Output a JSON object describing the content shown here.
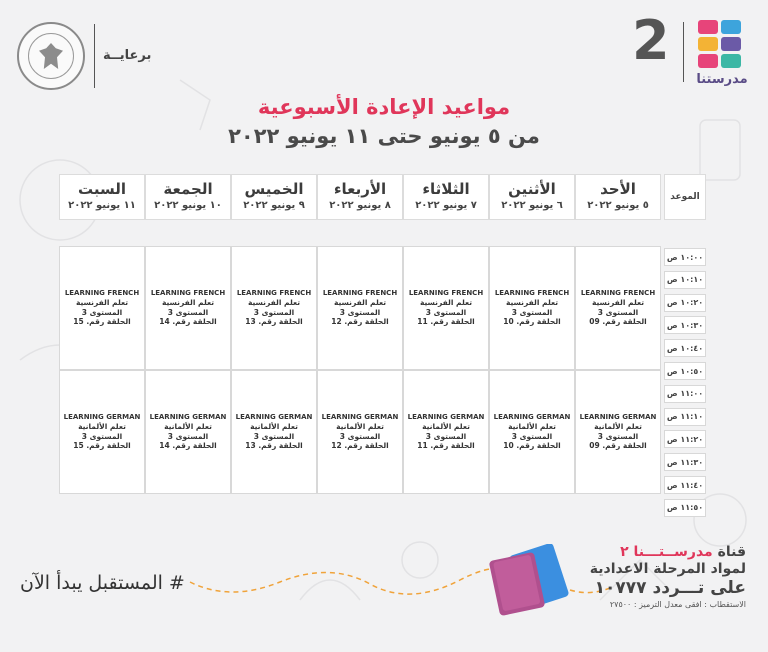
{
  "header": {
    "sponsor": "برعايــة",
    "channel_number": "2",
    "brand_name": "مدرستنا",
    "brand_colors": [
      "#e7447a",
      "#3da4dc",
      "#f3b335",
      "#6b5aa7",
      "#e7447a",
      "#3cb7a5"
    ]
  },
  "title": "مواعيد الإعادة الأسبوعية",
  "subtitle": "من ٥ يونيو حتى ١١ يونيو ٢٠٢٢",
  "time_header": "الموعد",
  "days": [
    {
      "name": "الأحد",
      "date": "٥ يونيو ٢٠٢٢"
    },
    {
      "name": "الأثنين",
      "date": "٦ يونيو ٢٠٢٢"
    },
    {
      "name": "الثلاثاء",
      "date": "٧ يونيو ٢٠٢٢"
    },
    {
      "name": "الأربعاء",
      "date": "٨ يونيو ٢٠٢٢"
    },
    {
      "name": "الخميس",
      "date": "٩ يونيو ٢٠٢٢"
    },
    {
      "name": "الجمعة",
      "date": "١٠ يونيو ٢٠٢٢"
    },
    {
      "name": "السبت",
      "date": "١١ يونيو ٢٠٢٢"
    }
  ],
  "time_slots": [
    "١٠:٠٠ ص",
    "١٠:١٠ ص",
    "١٠:٢٠ ص",
    "١٠:٣٠ ص",
    "١٠:٤٠ ص",
    "١٠:٥٠ ص",
    "١١:٠٠ ص",
    "١١:١٠ ص",
    "١١:٢٠ ص",
    "١١:٣٠ ص",
    "١١:٤٠ ص",
    "١١:٥٠ ص"
  ],
  "blocks": [
    {
      "subject_en": "LEARNING FRENCH",
      "subject_ar": "تعلم الفرنسية",
      "level": "المستوى 3",
      "episodes": [
        "الحلقة رقم. 09",
        "الحلقة رقم. 10",
        "الحلقة رقم. 11",
        "الحلقة رقم. 12",
        "الحلقة رقم. 13",
        "الحلقة رقم. 14",
        "الحلقة رقم. 15"
      ]
    },
    {
      "subject_en": "LEARNING GERMAN",
      "subject_ar": "تعلم الألمانية",
      "level": "المستوى 3",
      "episodes": [
        "الحلقة رقم. 09",
        "الحلقة رقم. 10",
        "الحلقة رقم. 11",
        "الحلقة رقم. 12",
        "الحلقة رقم. 13",
        "الحلقة رقم. 14",
        "الحلقة رقم. 15"
      ]
    }
  ],
  "footer": {
    "slogan": "# المستقبل يبدأ الآن",
    "promo_line1_prefix": "قناة ",
    "promo_line1_brand": "مدرســتـــنا ٢",
    "promo_line2": "لمواد المرحلة الاعدادية",
    "promo_line3": "على تـــردد ١٠٧٧٧",
    "promo_line4": "الاستقطاب : افقى معدل الترميز : ٢٧٥٠٠"
  }
}
